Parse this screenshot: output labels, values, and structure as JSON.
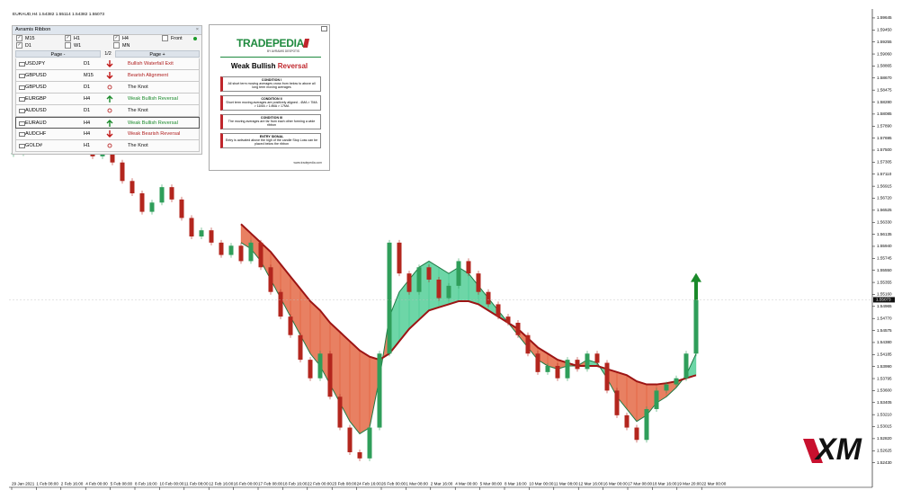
{
  "header": "EURAUD,H4 1.54382 1.55114 1.54382 1.55073",
  "panel": {
    "title": "Avramis Ribbon",
    "close": "×",
    "checks": [
      "M15",
      "H1",
      "H4",
      "Front",
      "D1",
      "W1",
      "MN"
    ],
    "nav": [
      "Page -",
      "1/2",
      "Page +"
    ],
    "rows": [
      [
        "USDJPY",
        "D1",
        "Bullish Waterfall Exit"
      ],
      [
        "GBPUSD",
        "M15",
        "Bearish Alignment"
      ],
      [
        "GBPUSD",
        "D1",
        "The Knot"
      ],
      [
        "EURGBP",
        "H4",
        "Weak Bullish Reversal"
      ],
      [
        "AUDUSD",
        "D1",
        "The Knot"
      ],
      [
        "EURAUD",
        "H4",
        "Weak Bullish Reversal"
      ],
      [
        "AUDCHF",
        "H4",
        "Weak Bearish Reversal"
      ],
      [
        "GOLD#",
        "H1",
        "The Knot"
      ]
    ]
  },
  "card": {
    "brand": "TRADEPEDIA",
    "by": "BY AVRAMIS DESPOTIS",
    "title_a": "Weak Bullish",
    "title_b": "Reversal",
    "conditions": [
      [
        "CONDITION I",
        "All short term moving averages cross from below to above all long term moving averages"
      ],
      [
        "CONDITION II",
        "Short term moving averages are positively aligned - 4MA > 7MA > 11MA > 14MA > 17MA"
      ],
      [
        "CONDITION III",
        "The moving averages are far from each other forming a wide ribbon"
      ],
      [
        "ENTRY SIGNAL",
        "Entry is activated above the high of the candle Stop Loss can be placed below the ribbon"
      ]
    ],
    "footer": "www.tradepedia.com"
  },
  "logo": "XM",
  "chart": {
    "type": "candlestick",
    "ylim": [
      1.5206,
      1.5979
    ],
    "yticks": [
      1.59645,
      {
        "value": 1.5945,
        "label": "1.59450"
      },
      1.59255,
      {
        "value": 1.5906,
        "label": "1.59060"
      },
      1.58865,
      {
        "value": 1.5867,
        "label": "1.58670"
      },
      1.58475,
      {
        "value": 1.5828,
        "label": "1.58280"
      },
      1.58085,
      {
        "value": 1.5789,
        "label": "1.57890"
      },
      1.57695,
      {
        "value": 1.575,
        "label": "1.57500"
      },
      1.57305,
      {
        "value": 1.5711,
        "label": "1.57110"
      },
      1.56915,
      {
        "value": 1.5672,
        "label": "1.56720"
      },
      1.56525,
      {
        "value": 1.5633,
        "label": "1.56330"
      },
      1.56135,
      {
        "value": 1.5594,
        "label": "1.55940"
      },
      1.55745,
      {
        "value": 1.5555,
        "label": "1.55550"
      },
      1.55355,
      {
        "value": 1.5516,
        "label": "1.55160"
      },
      1.54965,
      {
        "value": 1.5477,
        "label": "1.54770"
      },
      1.54575,
      {
        "value": 1.5438,
        "label": "1.54380"
      },
      1.54185,
      {
        "value": 1.5399,
        "label": "1.53990"
      },
      1.53795,
      {
        "value": 1.536,
        "label": "1.53600"
      },
      1.53405,
      {
        "value": 1.5321,
        "label": "1.53210"
      },
      1.53015,
      {
        "value": 1.5282,
        "label": "1.52820"
      },
      1.52625,
      {
        "value": 1.5243,
        "label": "1.52430"
      }
    ],
    "current_price": 1.55073,
    "xticks": [
      "29 Jan 2021",
      "1 Feb 08:00",
      "2 Feb 16:00",
      "4 Feb 00:00",
      "5 Feb 08:00",
      "8 Feb 16:00",
      "10 Feb 00:00",
      "11 Feb 08:00",
      "12 Feb 16:00",
      "16 Feb 00:00",
      "17 Feb 08:00",
      "18 Feb 16:00",
      "22 Feb 00:00",
      "23 Feb 08:00",
      "24 Feb 16:00",
      "26 Feb 00:00",
      "1 Mar 08:00",
      "2 Mar 16:00",
      "4 Mar 00:00",
      "5 Mar 08:00",
      "8 Mar 16:00",
      "10 Mar 00:00",
      "11 Mar 08:00",
      "12 Mar 16:00",
      "16 Mar 00:00",
      "17 Mar 08:00",
      "18 Mar 16:00",
      "19 Mar 20:00",
      "22 Mar 00:00"
    ],
    "closes": [
      1.5745,
      1.576,
      1.577,
      1.5765,
      1.5778,
      1.5772,
      1.5768,
      1.5755,
      1.574,
      1.576,
      1.573,
      1.57,
      1.568,
      1.565,
      1.5665,
      1.569,
      1.567,
      1.564,
      1.561,
      1.562,
      1.56,
      1.558,
      1.5595,
      1.557,
      1.56,
      1.556,
      1.552,
      1.548,
      1.545,
      1.541,
      1.538,
      1.542,
      1.535,
      1.53,
      1.526,
      1.525,
      1.53,
      1.542,
      1.56,
      1.555,
      1.552,
      1.556,
      1.554,
      1.551,
      1.553,
      1.557,
      1.555,
      1.552,
      1.55,
      1.548,
      1.547,
      1.545,
      1.542,
      1.539,
      1.54,
      1.538,
      1.541,
      1.5395,
      1.542,
      1.5405,
      1.536,
      1.532,
      1.53,
      1.528,
      1.533,
      1.536,
      1.537,
      1.538,
      1.542,
      1.5507
    ],
    "fast": [
      null,
      null,
      null,
      null,
      null,
      null,
      null,
      null,
      null,
      null,
      null,
      null,
      null,
      null,
      null,
      null,
      null,
      null,
      null,
      null,
      null,
      null,
      null,
      1.56,
      1.559,
      1.557,
      1.554,
      1.551,
      1.548,
      1.545,
      1.542,
      1.54,
      1.537,
      1.534,
      1.531,
      1.529,
      1.53,
      1.538,
      1.548,
      1.552,
      1.554,
      1.556,
      1.557,
      1.556,
      1.555,
      1.556,
      1.555,
      1.553,
      1.551,
      1.549,
      1.547,
      1.545,
      1.543,
      1.541,
      1.54,
      1.5395,
      1.54,
      1.54,
      1.541,
      1.5405,
      1.538,
      1.535,
      1.533,
      1.531,
      1.532,
      1.534,
      1.535,
      1.5365,
      1.5385,
      1.542
    ],
    "slow": [
      null,
      null,
      null,
      null,
      null,
      null,
      null,
      null,
      null,
      null,
      null,
      null,
      null,
      null,
      null,
      null,
      null,
      null,
      null,
      null,
      null,
      null,
      null,
      1.563,
      1.5615,
      1.56,
      1.5585,
      1.5565,
      1.5545,
      1.5525,
      1.5505,
      1.549,
      1.547,
      1.5455,
      1.544,
      1.5425,
      1.5415,
      1.541,
      1.542,
      1.544,
      1.546,
      1.5475,
      1.549,
      1.5495,
      1.55,
      1.5505,
      1.5505,
      1.55,
      1.549,
      1.548,
      1.547,
      1.546,
      1.5445,
      1.543,
      1.542,
      1.541,
      1.5405,
      1.54,
      1.54,
      1.54,
      1.5395,
      1.539,
      1.5385,
      1.5375,
      1.537,
      1.537,
      1.5372,
      1.5375,
      1.538,
      1.5385
    ],
    "up_color": "#2f9e5a",
    "down_color": "#b3261e",
    "bull_color": "#3cc88a",
    "bear_color": "#e0552e",
    "slow_color": "#9c1414"
  }
}
